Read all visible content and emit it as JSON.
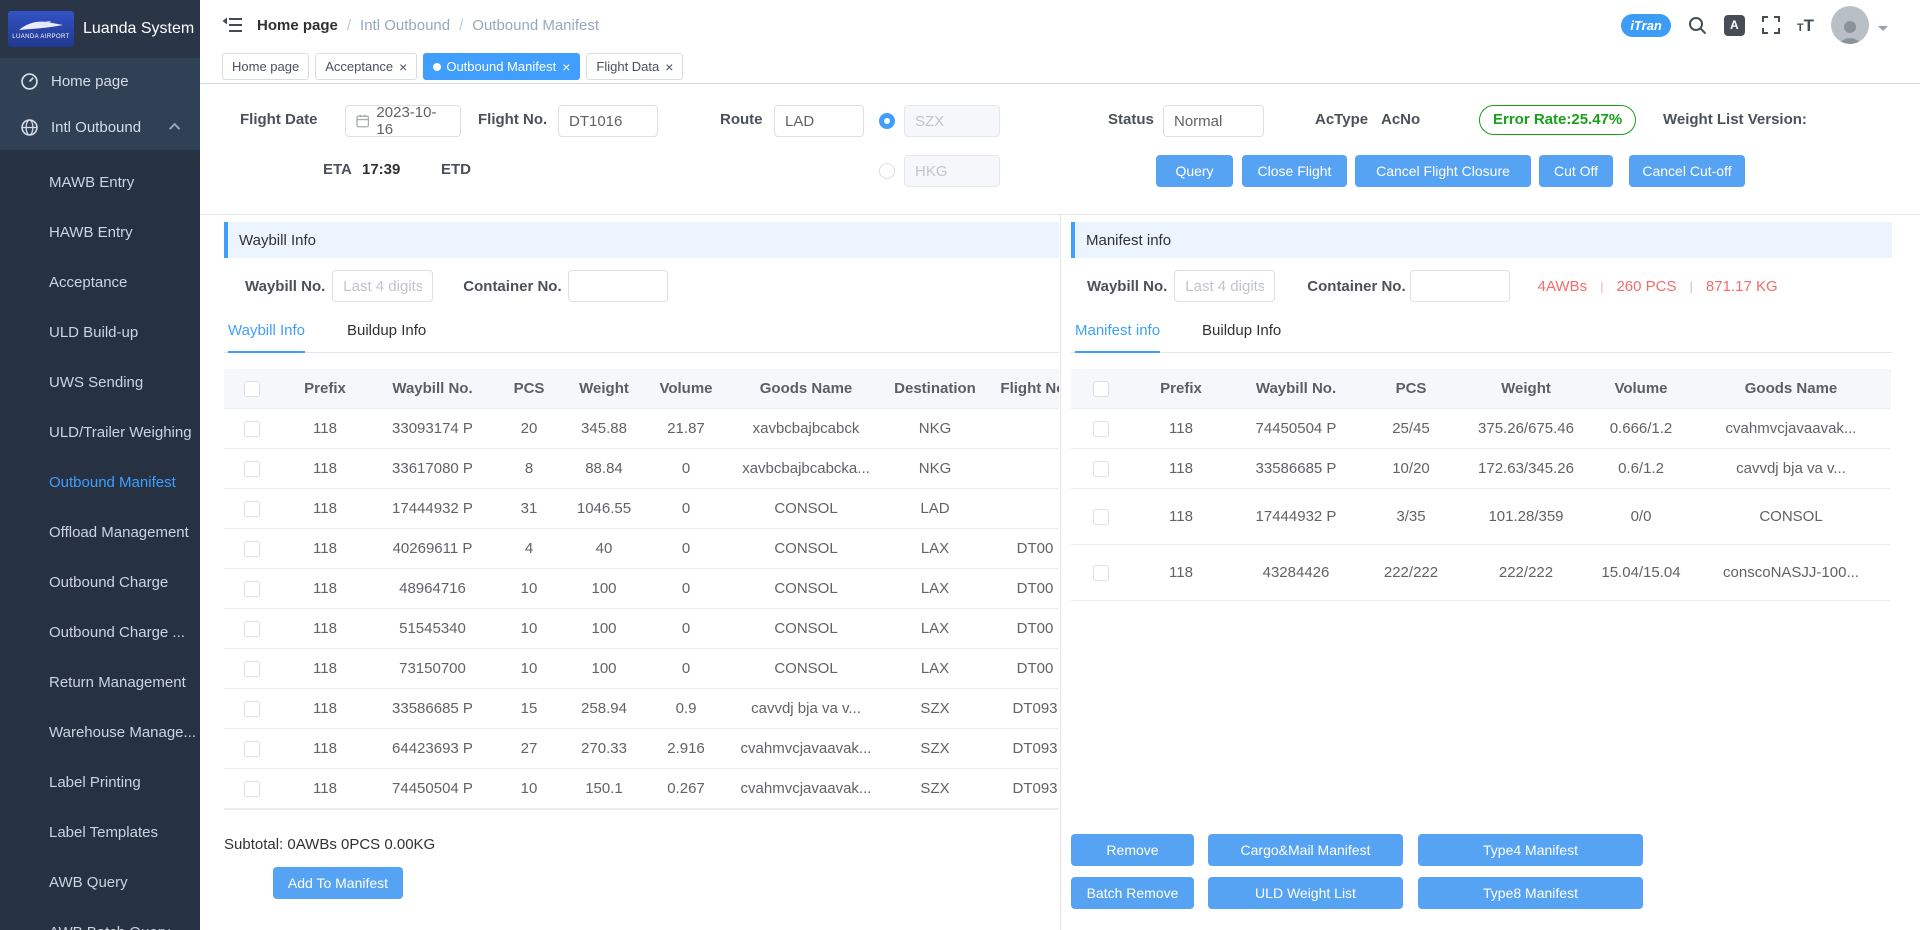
{
  "app": {
    "title": "Luanda System",
    "logo_caption": "LUANDA AIRPORT"
  },
  "topbar": {
    "breadcrumb": [
      "Home page",
      "Intl Outbound",
      "Outbound Manifest"
    ],
    "itran_label": "iTran"
  },
  "page_tabs": [
    {
      "label": "Home page",
      "active": false,
      "closable": false
    },
    {
      "label": "Acceptance",
      "active": false,
      "closable": true
    },
    {
      "label": "Outbound Manifest",
      "active": true,
      "closable": true
    },
    {
      "label": "Flight Data",
      "active": false,
      "closable": true
    }
  ],
  "sidebar": {
    "home_label": "Home page",
    "parent_label": "Intl Outbound",
    "submenu": [
      {
        "label": "MAWB Entry",
        "active": false
      },
      {
        "label": "HAWB Entry",
        "active": false
      },
      {
        "label": "Acceptance",
        "active": false
      },
      {
        "label": "ULD Build-up",
        "active": false
      },
      {
        "label": "UWS Sending",
        "active": false
      },
      {
        "label": "ULD/Trailer Weighing",
        "active": false
      },
      {
        "label": "Outbound Manifest",
        "active": true
      },
      {
        "label": "Offload Management",
        "active": false
      },
      {
        "label": "Outbound Charge",
        "active": false
      },
      {
        "label": "Outbound Charge ...",
        "active": false
      },
      {
        "label": "Return Management",
        "active": false
      },
      {
        "label": "Warehouse Manage...",
        "active": false
      },
      {
        "label": "Label Printing",
        "active": false
      },
      {
        "label": "Label Templates",
        "active": false
      },
      {
        "label": "AWB Query",
        "active": false
      },
      {
        "label": "AWB Batch Query",
        "active": false
      }
    ]
  },
  "flight_form": {
    "flight_date_label": "Flight Date",
    "flight_date": "2023-10-16",
    "flight_no_label": "Flight No.",
    "flight_no": "DT1016",
    "route_label": "Route",
    "route_origin": "LAD",
    "route_leg1": "SZX",
    "route_leg2": "HKG",
    "status_label": "Status",
    "status": "Normal",
    "actype_label": "AcType",
    "acno_label": "AcNo",
    "error_rate": "Error Rate:25.47%",
    "weight_list_version_label": "Weight List Version:",
    "eta_label": "ETA",
    "eta": "17:39",
    "etd_label": "ETD"
  },
  "actions": {
    "query": "Query",
    "close_flight": "Close Flight",
    "cancel_flight_closure": "Cancel Flight Closure",
    "cut_off": "Cut Off",
    "cancel_cut_off": "Cancel Cut-off"
  },
  "left_panel": {
    "title": "Waybill Info",
    "waybill_no_label": "Waybill No.",
    "waybill_no_placeholder": "Last 4 digits",
    "container_no_label": "Container No.",
    "tabs": [
      {
        "label": "Waybill Info",
        "active": true
      },
      {
        "label": "Buildup Info",
        "active": false
      }
    ],
    "table": {
      "columns": [
        "Prefix",
        "Waybill No.",
        "PCS",
        "Weight",
        "Volume",
        "Goods Name",
        "Destination",
        "Flight No."
      ],
      "rows": [
        [
          "118",
          "33093174 P",
          "20",
          "345.88",
          "21.87",
          "xavbcbajbcabck",
          "NKG",
          ""
        ],
        [
          "118",
          "33617080 P",
          "8",
          "88.84",
          "0",
          "xavbcbajbcabcka...",
          "NKG",
          ""
        ],
        [
          "118",
          "17444932 P",
          "31",
          "1046.55",
          "0",
          "CONSOL",
          "LAD",
          ""
        ],
        [
          "118",
          "40269611 P",
          "4",
          "40",
          "0",
          "CONSOL",
          "LAX",
          "DT00"
        ],
        [
          "118",
          "48964716",
          "10",
          "100",
          "0",
          "CONSOL",
          "LAX",
          "DT00"
        ],
        [
          "118",
          "51545340",
          "10",
          "100",
          "0",
          "CONSOL",
          "LAX",
          "DT00"
        ],
        [
          "118",
          "73150700",
          "10",
          "100",
          "0",
          "CONSOL",
          "LAX",
          "DT00"
        ],
        [
          "118",
          "33586685 P",
          "15",
          "258.94",
          "0.9",
          "cavvdj bja va v...",
          "SZX",
          "DT093"
        ],
        [
          "118",
          "64423693 P",
          "27",
          "270.33",
          "2.916",
          "cvahmvcjavaavak...",
          "SZX",
          "DT093"
        ],
        [
          "118",
          "74450504 P",
          "10",
          "150.1",
          "0.267",
          "cvahmvcjavaavak...",
          "SZX",
          "DT093"
        ]
      ]
    },
    "subtotal": "Subtotal: 0AWBs 0PCS 0.00KG",
    "add_button": "Add To Manifest"
  },
  "right_panel": {
    "title": "Manifest info",
    "waybill_no_label": "Waybill No.",
    "waybill_no_placeholder": "Last 4 digits",
    "container_no_label": "Container No.",
    "stats": [
      "4AWBs",
      "260 PCS",
      "871.17 KG"
    ],
    "tabs": [
      {
        "label": "Manifest info",
        "active": true
      },
      {
        "label": "Buildup Info",
        "active": false
      }
    ],
    "table": {
      "columns": [
        "Prefix",
        "Waybill No.",
        "PCS",
        "Weight",
        "Volume",
        "Goods Name"
      ],
      "rows": [
        [
          "118",
          "74450504 P",
          "25/45",
          "375.26/675.46",
          "0.666/1.2",
          "cvahmvcjavaavak..."
        ],
        [
          "118",
          "33586685 P",
          "10/20",
          "172.63/345.26",
          "0.6/1.2",
          "cavvdj bja va v..."
        ],
        [
          "118",
          "17444932 P",
          "3/35",
          "101.28/359",
          "0/0",
          "CONSOL"
        ],
        [
          "118",
          "43284426",
          "222/222",
          "222/222",
          "15.04/15.04",
          "conscoNASJJ-100..."
        ]
      ]
    },
    "buttons_row1": [
      "Remove",
      "Cargo&Mail Manifest",
      "Type4 Manifest"
    ],
    "buttons_row2": [
      "Batch Remove",
      "ULD Weight List",
      "Type8 Manifest"
    ]
  },
  "colors": {
    "accent": "#409EFF",
    "button_blue": "#57a3f3",
    "error_green": "#18a018",
    "alert_red": "#f56c6c"
  }
}
